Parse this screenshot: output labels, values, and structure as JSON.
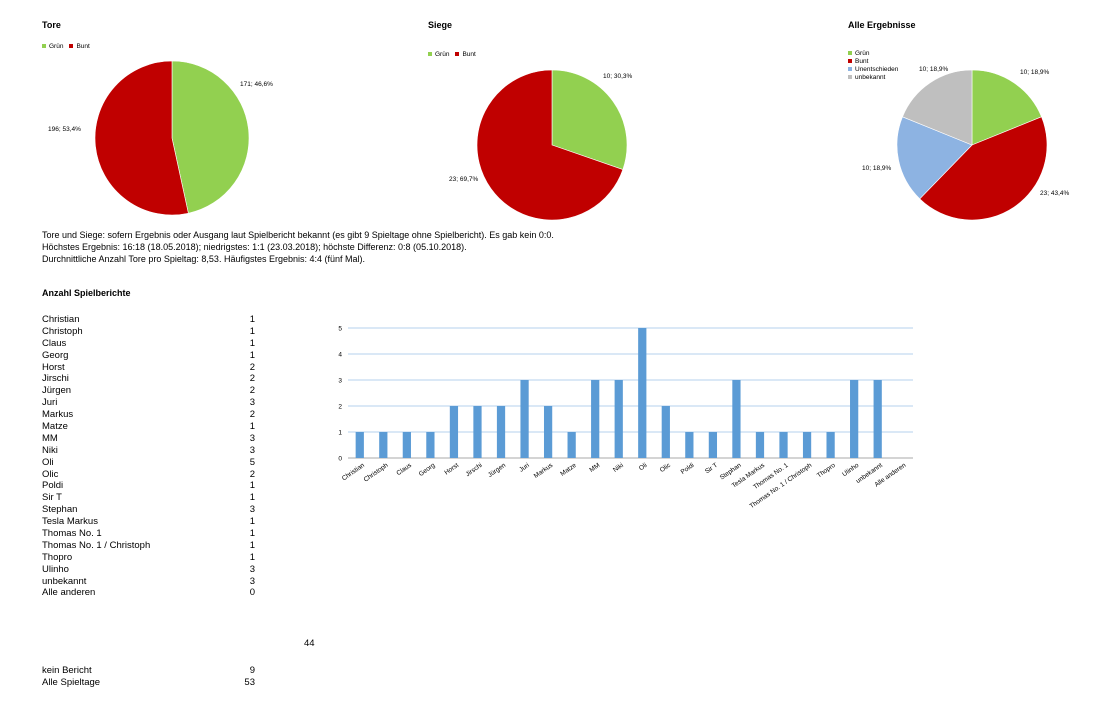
{
  "chart_data": [
    {
      "type": "pie",
      "title": "Tore",
      "legend": [
        "Grün",
        "Bunt"
      ],
      "legend_placement": "top-left",
      "slices": [
        {
          "name": "Grün",
          "value": 171,
          "label": "171; 46,6%",
          "color": "#92d050"
        },
        {
          "name": "Bunt",
          "value": 196,
          "label": "196; 53,4%",
          "color": "#c00000"
        }
      ]
    },
    {
      "type": "pie",
      "title": "Siege",
      "legend": [
        "Grün",
        "Bunt"
      ],
      "legend_placement": "top-left",
      "slices": [
        {
          "name": "Grün",
          "value": 10,
          "label": "10; 30,3%",
          "color": "#92d050"
        },
        {
          "name": "Bunt",
          "value": 23,
          "label": "23; 69,7%",
          "color": "#c00000"
        }
      ]
    },
    {
      "type": "pie",
      "title": "Alle Ergebnisse",
      "legend": [
        "Grün",
        "Bunt",
        "Unentschieden",
        "unbekannt"
      ],
      "legend_placement": "top-left",
      "slices": [
        {
          "name": "Grün",
          "value": 10,
          "label": "10; 18,9%",
          "color": "#92d050"
        },
        {
          "name": "Bunt",
          "value": 23,
          "label": "23; 43,4%",
          "color": "#c00000"
        },
        {
          "name": "Unentschieden",
          "value": 10,
          "label": "10; 18,9%",
          "color": "#8db3e2"
        },
        {
          "name": "unbekannt",
          "value": 10,
          "label": "10; 18,9%",
          "color": "#bfbfbf"
        }
      ]
    },
    {
      "type": "bar",
      "title": "",
      "categories": [
        "Christian",
        "Christoph",
        "Claus",
        "Georg",
        "Horst",
        "Jirschi",
        "Jürgen",
        "Juri",
        "Markus",
        "Matze",
        "MM",
        "Niki",
        "Oli",
        "Olic",
        "Poldi",
        "Sir T",
        "Stephan",
        "Tesla Markus",
        "Thomas No. 1",
        "Thomas No. 1 / Christoph",
        "Thopro",
        "Ulinho",
        "unbekannt",
        "Alle anderen"
      ],
      "values": [
        1,
        1,
        1,
        1,
        2,
        2,
        2,
        3,
        2,
        1,
        3,
        3,
        5,
        2,
        1,
        1,
        3,
        1,
        1,
        1,
        1,
        3,
        3,
        0
      ],
      "ylim": [
        0,
        5
      ],
      "yticks": [
        "0",
        "1",
        "2",
        "3",
        "4",
        "5"
      ],
      "grid": true,
      "bar_color": "#5b9bd5"
    }
  ],
  "summary": {
    "line1": "Tore und Siege: sofern Ergebnis oder Ausgang laut Spielbericht bekannt (es gibt 9 Spieltage ohne Spielbericht). Es gab kein 0:0.",
    "line2": "Höchstes Ergebnis: 16:18 (18.05.2018); niedrigstes: 1:1 (23.03.2018); höchste Differenz: 0:8 (05.10.2018).",
    "line3": "Durchnittliche Anzahl Tore pro Spieltag: 8,53. Häufigstes Ergebnis: 4:4 (fünf Mal)."
  },
  "reports": {
    "heading": "Anzahl Spielberichte",
    "rows": [
      {
        "name": "Christian",
        "count": "1"
      },
      {
        "name": "Christoph",
        "count": "1"
      },
      {
        "name": "Claus",
        "count": "1"
      },
      {
        "name": "Georg",
        "count": "1"
      },
      {
        "name": "Horst",
        "count": "2"
      },
      {
        "name": "Jirschi",
        "count": "2"
      },
      {
        "name": "Jürgen",
        "count": "2"
      },
      {
        "name": "Juri",
        "count": "3"
      },
      {
        "name": "Markus",
        "count": "2"
      },
      {
        "name": "Matze",
        "count": "1"
      },
      {
        "name": "MM",
        "count": "3"
      },
      {
        "name": "Niki",
        "count": "3"
      },
      {
        "name": "Oli",
        "count": "5"
      },
      {
        "name": "Olic",
        "count": "2"
      },
      {
        "name": "Poldi",
        "count": "1"
      },
      {
        "name": "Sir T",
        "count": "1"
      },
      {
        "name": "Stephan",
        "count": "3"
      },
      {
        "name": "Tesla Markus",
        "count": "1"
      },
      {
        "name": "Thomas No. 1",
        "count": "1"
      },
      {
        "name": "Thomas No. 1 / Christoph",
        "count": "1"
      },
      {
        "name": "Thopro",
        "count": "1"
      },
      {
        "name": "Ulinho",
        "count": "3"
      },
      {
        "name": "unbekannt",
        "count": "3"
      },
      {
        "name": "Alle anderen",
        "count": "0"
      }
    ],
    "total": "44",
    "no_report_label": "kein Bericht",
    "no_report_count": "9",
    "all_label": "Alle Spieltage",
    "all_count": "53"
  }
}
